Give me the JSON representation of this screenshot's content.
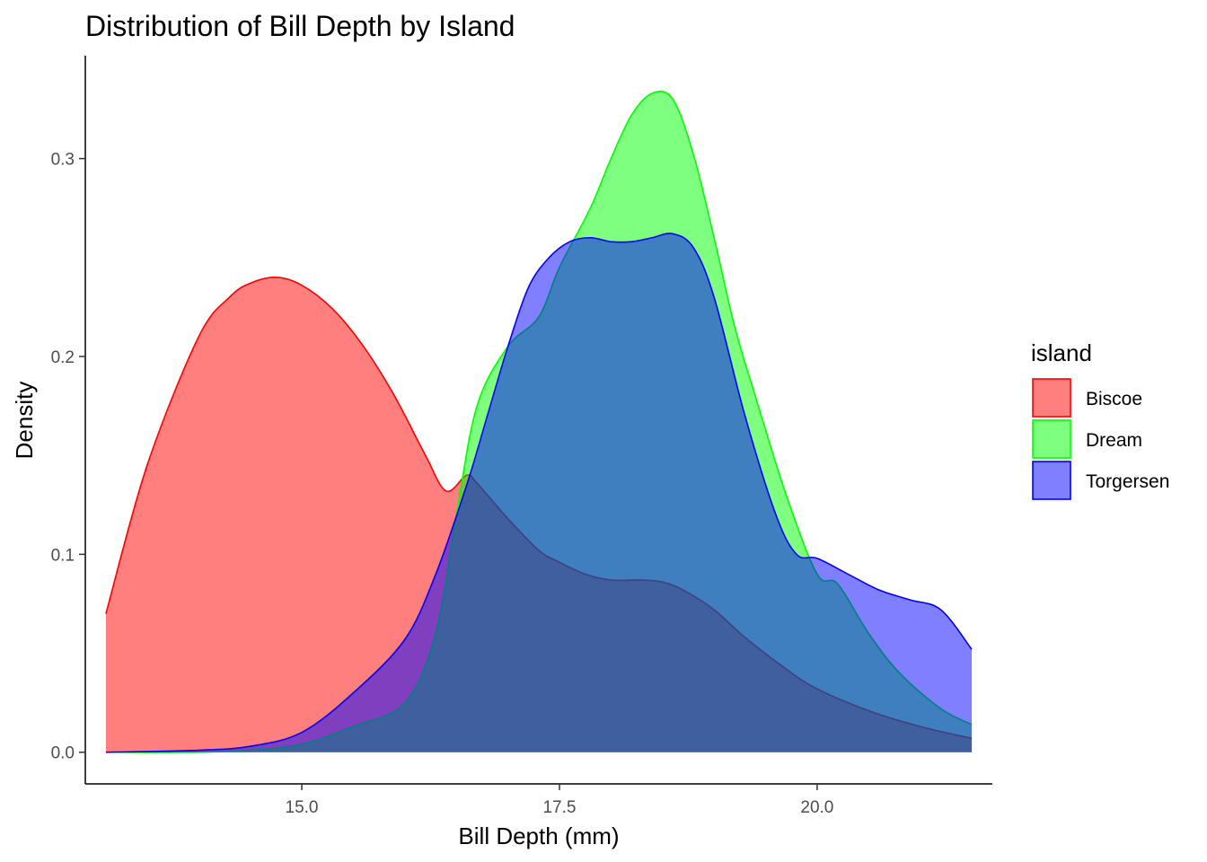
{
  "chart_data": {
    "type": "area",
    "title": "Distribution of Bill Depth by Island",
    "xlabel": "Bill Depth (mm)",
    "ylabel": "Density",
    "xlim": [
      12.9,
      21.7
    ],
    "ylim": [
      -0.016,
      0.352
    ],
    "x_ticks": [
      15.0,
      17.5,
      20.0
    ],
    "x_tick_labels": [
      "15.0",
      "17.5",
      "20.0"
    ],
    "y_ticks": [
      0.0,
      0.1,
      0.2,
      0.3
    ],
    "y_tick_labels": [
      "0.0",
      "0.1",
      "0.2",
      "0.3"
    ],
    "grid": false,
    "legend": {
      "title": "island",
      "position": "right"
    },
    "fill_opacity": 0.5,
    "series": [
      {
        "name": "Biscoe",
        "color": "#ff0000",
        "x": [
          13.1,
          13.5,
          14.0,
          14.3,
          14.5,
          14.75,
          15.0,
          15.3,
          15.6,
          15.9,
          16.2,
          16.4,
          16.6,
          16.7,
          17.0,
          17.3,
          17.5,
          17.75,
          18.0,
          18.3,
          18.5,
          18.7,
          19.0,
          19.3,
          19.7,
          20.0,
          20.5,
          21.0,
          21.5
        ],
        "y": [
          0.07,
          0.145,
          0.21,
          0.23,
          0.237,
          0.24,
          0.236,
          0.224,
          0.205,
          0.18,
          0.15,
          0.132,
          0.14,
          0.136,
          0.118,
          0.102,
          0.096,
          0.09,
          0.087,
          0.087,
          0.086,
          0.082,
          0.072,
          0.058,
          0.042,
          0.032,
          0.021,
          0.013,
          0.007
        ]
      },
      {
        "name": "Dream",
        "color": "#00ff00",
        "x": [
          13.1,
          14.0,
          14.5,
          15.0,
          15.5,
          16.0,
          16.3,
          16.5,
          16.7,
          17.0,
          17.3,
          17.5,
          17.8,
          18.0,
          18.2,
          18.4,
          18.6,
          18.8,
          19.0,
          19.2,
          19.4,
          19.7,
          20.0,
          20.2,
          20.5,
          20.8,
          21.2,
          21.5
        ],
        "y": [
          0.0,
          0.0,
          0.001,
          0.004,
          0.013,
          0.025,
          0.06,
          0.12,
          0.175,
          0.205,
          0.22,
          0.245,
          0.275,
          0.3,
          0.322,
          0.333,
          0.33,
          0.302,
          0.26,
          0.215,
          0.18,
          0.13,
          0.09,
          0.085,
          0.06,
          0.04,
          0.022,
          0.014
        ]
      },
      {
        "name": "Torgersen",
        "color": "#0000ff",
        "x": [
          13.1,
          14.0,
          14.5,
          15.0,
          15.5,
          16.0,
          16.3,
          16.6,
          16.8,
          17.0,
          17.2,
          17.4,
          17.6,
          17.8,
          18.0,
          18.2,
          18.4,
          18.6,
          18.8,
          19.0,
          19.3,
          19.6,
          19.8,
          20.0,
          20.3,
          20.6,
          20.9,
          21.2,
          21.5
        ],
        "y": [
          0.0,
          0.001,
          0.003,
          0.01,
          0.03,
          0.057,
          0.09,
          0.135,
          0.17,
          0.205,
          0.235,
          0.25,
          0.258,
          0.26,
          0.258,
          0.258,
          0.26,
          0.262,
          0.255,
          0.23,
          0.17,
          0.12,
          0.1,
          0.098,
          0.09,
          0.082,
          0.077,
          0.072,
          0.052
        ]
      }
    ]
  }
}
